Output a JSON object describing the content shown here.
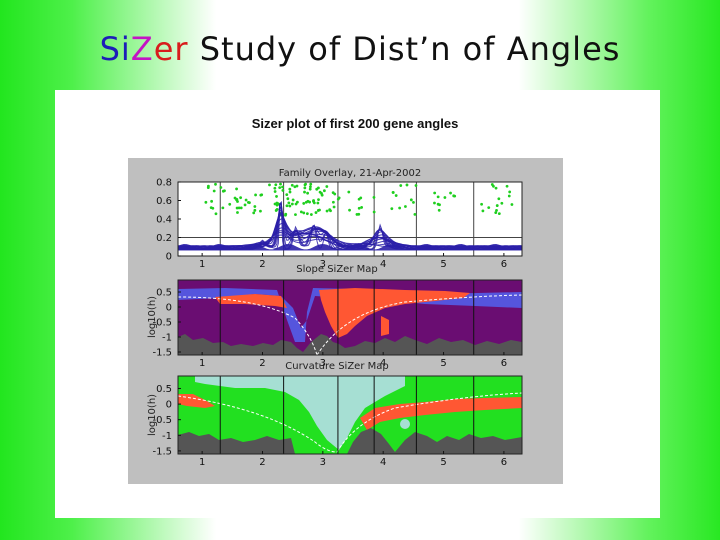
{
  "slide": {
    "title_parts": {
      "si": "Si",
      "z": "Z",
      "er": "er",
      "rest": " Study of Dist’n of Angles"
    }
  },
  "figure": {
    "main_title": "Sizer plot of first 200 gene angles",
    "colors": {
      "gray_bg": "#bfbfbf",
      "purple": "#6a0d72",
      "blue": "#5555dd",
      "red": "#ff5733",
      "cyan": "#a6dfd3",
      "green": "#22e020",
      "dark": "#555555",
      "dots": "#1fcf1f",
      "curves": "#2a1fa8"
    }
  },
  "chart_data": [
    {
      "type": "line",
      "title": "Family Overlay, 21-Apr-2002",
      "xlim": [
        0.6,
        6.3
      ],
      "ylim": [
        0,
        0.8
      ],
      "xticks": [
        "1",
        "2",
        "3",
        "4",
        "5",
        "6"
      ],
      "yticks": [
        "0",
        "0.2",
        "0.4",
        "0.6",
        "0.8"
      ],
      "vlines": [
        1.3,
        2.35,
        3.25,
        3.85,
        4.55,
        5.5
      ],
      "hlines": [
        0.2
      ],
      "curve_peaks": [
        {
          "x": 2.0,
          "y": 0.12
        },
        {
          "x": 2.3,
          "y": 0.62
        },
        {
          "x": 2.55,
          "y": 0.28
        },
        {
          "x": 2.85,
          "y": 0.3
        },
        {
          "x": 3.05,
          "y": 0.24
        },
        {
          "x": 3.95,
          "y": 0.3
        }
      ]
    },
    {
      "type": "heatmap",
      "title": "Slope SiZer Map",
      "ylabel": "log10(h)",
      "ylim": [
        -1.6,
        0.9
      ],
      "xlim": [
        0.6,
        6.3
      ],
      "xticks": [
        "1",
        "2",
        "3",
        "4",
        "5",
        "6"
      ],
      "yticks": [
        "0.5",
        "0",
        "-0.5",
        "-1",
        "-1.5"
      ],
      "legend_colors": [
        "purple",
        "blue",
        "red",
        "dark"
      ]
    },
    {
      "type": "heatmap",
      "title": "Curvature SiZer Map",
      "ylabel": "log10(h)",
      "ylim": [
        -1.6,
        0.9
      ],
      "xlim": [
        0.6,
        6.3
      ],
      "xticks": [
        "1",
        "2",
        "3",
        "4",
        "5",
        "6"
      ],
      "yticks": [
        "0.5",
        "0",
        "-0.5",
        "-1",
        "-1.5"
      ],
      "legend_colors": [
        "cyan",
        "green",
        "red",
        "dark"
      ]
    }
  ]
}
